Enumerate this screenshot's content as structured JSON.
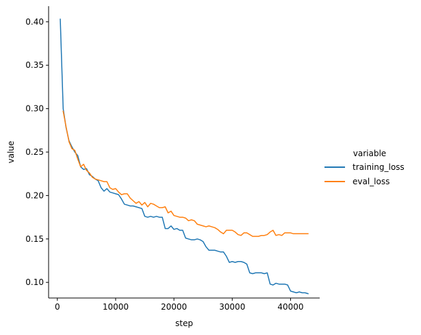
{
  "chart_data": {
    "type": "line",
    "title": "",
    "xlabel": "step",
    "ylabel": "value",
    "xlim": [
      -1500,
      45000
    ],
    "ylim": [
      0.082,
      0.418
    ],
    "xticks": [
      0,
      10000,
      20000,
      30000,
      40000
    ],
    "xtick_labels": [
      "0",
      "10000",
      "20000",
      "30000",
      "40000"
    ],
    "yticks": [
      0.1,
      0.15,
      0.2,
      0.25,
      0.3,
      0.35,
      0.4
    ],
    "ytick_labels": [
      "0.10",
      "0.15",
      "0.20",
      "0.25",
      "0.30",
      "0.35",
      "0.40"
    ],
    "grid": false,
    "legend": {
      "title": "variable",
      "placement": "right"
    },
    "series": [
      {
        "name": "training_loss",
        "color": "#1f77b4",
        "x": [
          500,
          1000,
          1500,
          2000,
          2500,
          3000,
          3500,
          4000,
          4500,
          5000,
          5500,
          6000,
          6500,
          7000,
          7500,
          8000,
          8500,
          9000,
          9500,
          10000,
          10500,
          11000,
          11500,
          12000,
          12500,
          13000,
          13500,
          14000,
          14500,
          15000,
          15500,
          16000,
          16500,
          17000,
          17500,
          18000,
          18500,
          19000,
          19500,
          20000,
          20500,
          21000,
          21500,
          22000,
          22500,
          23000,
          23500,
          24000,
          24500,
          25000,
          25500,
          26000,
          26500,
          27000,
          27500,
          28000,
          28500,
          29000,
          29500,
          30000,
          30500,
          31000,
          31500,
          32000,
          32500,
          33000,
          33500,
          34000,
          34500,
          35000,
          35500,
          36000,
          36500,
          37000,
          37500,
          38000,
          38500,
          39000,
          39500,
          40000,
          40500,
          41000,
          41500,
          42000,
          42500,
          43000
        ],
        "values": [
          0.403,
          0.3,
          0.278,
          0.263,
          0.256,
          0.25,
          0.246,
          0.233,
          0.23,
          0.231,
          0.224,
          0.222,
          0.219,
          0.217,
          0.209,
          0.205,
          0.208,
          0.204,
          0.203,
          0.202,
          0.201,
          0.196,
          0.19,
          0.189,
          0.188,
          0.188,
          0.187,
          0.186,
          0.185,
          0.176,
          0.175,
          0.176,
          0.175,
          0.176,
          0.175,
          0.175,
          0.162,
          0.162,
          0.165,
          0.161,
          0.162,
          0.16,
          0.16,
          0.151,
          0.15,
          0.149,
          0.149,
          0.15,
          0.149,
          0.147,
          0.141,
          0.137,
          0.137,
          0.137,
          0.136,
          0.135,
          0.135,
          0.13,
          0.123,
          0.124,
          0.123,
          0.124,
          0.124,
          0.123,
          0.121,
          0.111,
          0.11,
          0.111,
          0.111,
          0.111,
          0.11,
          0.111,
          0.098,
          0.097,
          0.099,
          0.098,
          0.098,
          0.098,
          0.097,
          0.09,
          0.089,
          0.088,
          0.089,
          0.088,
          0.088,
          0.087
        ]
      },
      {
        "name": "eval_loss",
        "color": "#ff7f0e",
        "x": [
          1000,
          1500,
          2000,
          2500,
          3000,
          3500,
          4000,
          4500,
          5000,
          5500,
          6000,
          6500,
          7000,
          7500,
          8000,
          8500,
          9000,
          9500,
          10000,
          10500,
          11000,
          11500,
          12000,
          12500,
          13000,
          13500,
          14000,
          14500,
          15000,
          15500,
          16000,
          16500,
          17000,
          17500,
          18000,
          18500,
          19000,
          19500,
          20000,
          20500,
          21000,
          21500,
          22000,
          22500,
          23000,
          23500,
          24000,
          24500,
          25000,
          25500,
          26000,
          26500,
          27000,
          27500,
          28000,
          28500,
          29000,
          29500,
          30000,
          30500,
          31000,
          31500,
          32000,
          32500,
          33000,
          33500,
          34000,
          34500,
          35000,
          35500,
          36000,
          36500,
          37000,
          37500,
          38000,
          38500,
          39000,
          39500,
          40000,
          40500,
          41000,
          41500,
          42000,
          42500,
          43000
        ],
        "values": [
          0.297,
          0.279,
          0.262,
          0.254,
          0.252,
          0.242,
          0.233,
          0.236,
          0.229,
          0.226,
          0.221,
          0.219,
          0.218,
          0.217,
          0.216,
          0.216,
          0.209,
          0.207,
          0.208,
          0.204,
          0.201,
          0.202,
          0.202,
          0.197,
          0.194,
          0.191,
          0.193,
          0.189,
          0.192,
          0.187,
          0.191,
          0.19,
          0.188,
          0.186,
          0.186,
          0.187,
          0.18,
          0.182,
          0.177,
          0.176,
          0.175,
          0.175,
          0.174,
          0.171,
          0.172,
          0.171,
          0.167,
          0.166,
          0.165,
          0.164,
          0.165,
          0.164,
          0.163,
          0.161,
          0.158,
          0.156,
          0.16,
          0.16,
          0.16,
          0.158,
          0.155,
          0.154,
          0.157,
          0.157,
          0.155,
          0.153,
          0.153,
          0.153,
          0.154,
          0.154,
          0.155,
          0.158,
          0.16,
          0.154,
          0.155,
          0.154,
          0.157,
          0.157,
          0.157,
          0.156,
          0.156,
          0.156,
          0.156,
          0.156,
          0.156
        ]
      }
    ]
  }
}
